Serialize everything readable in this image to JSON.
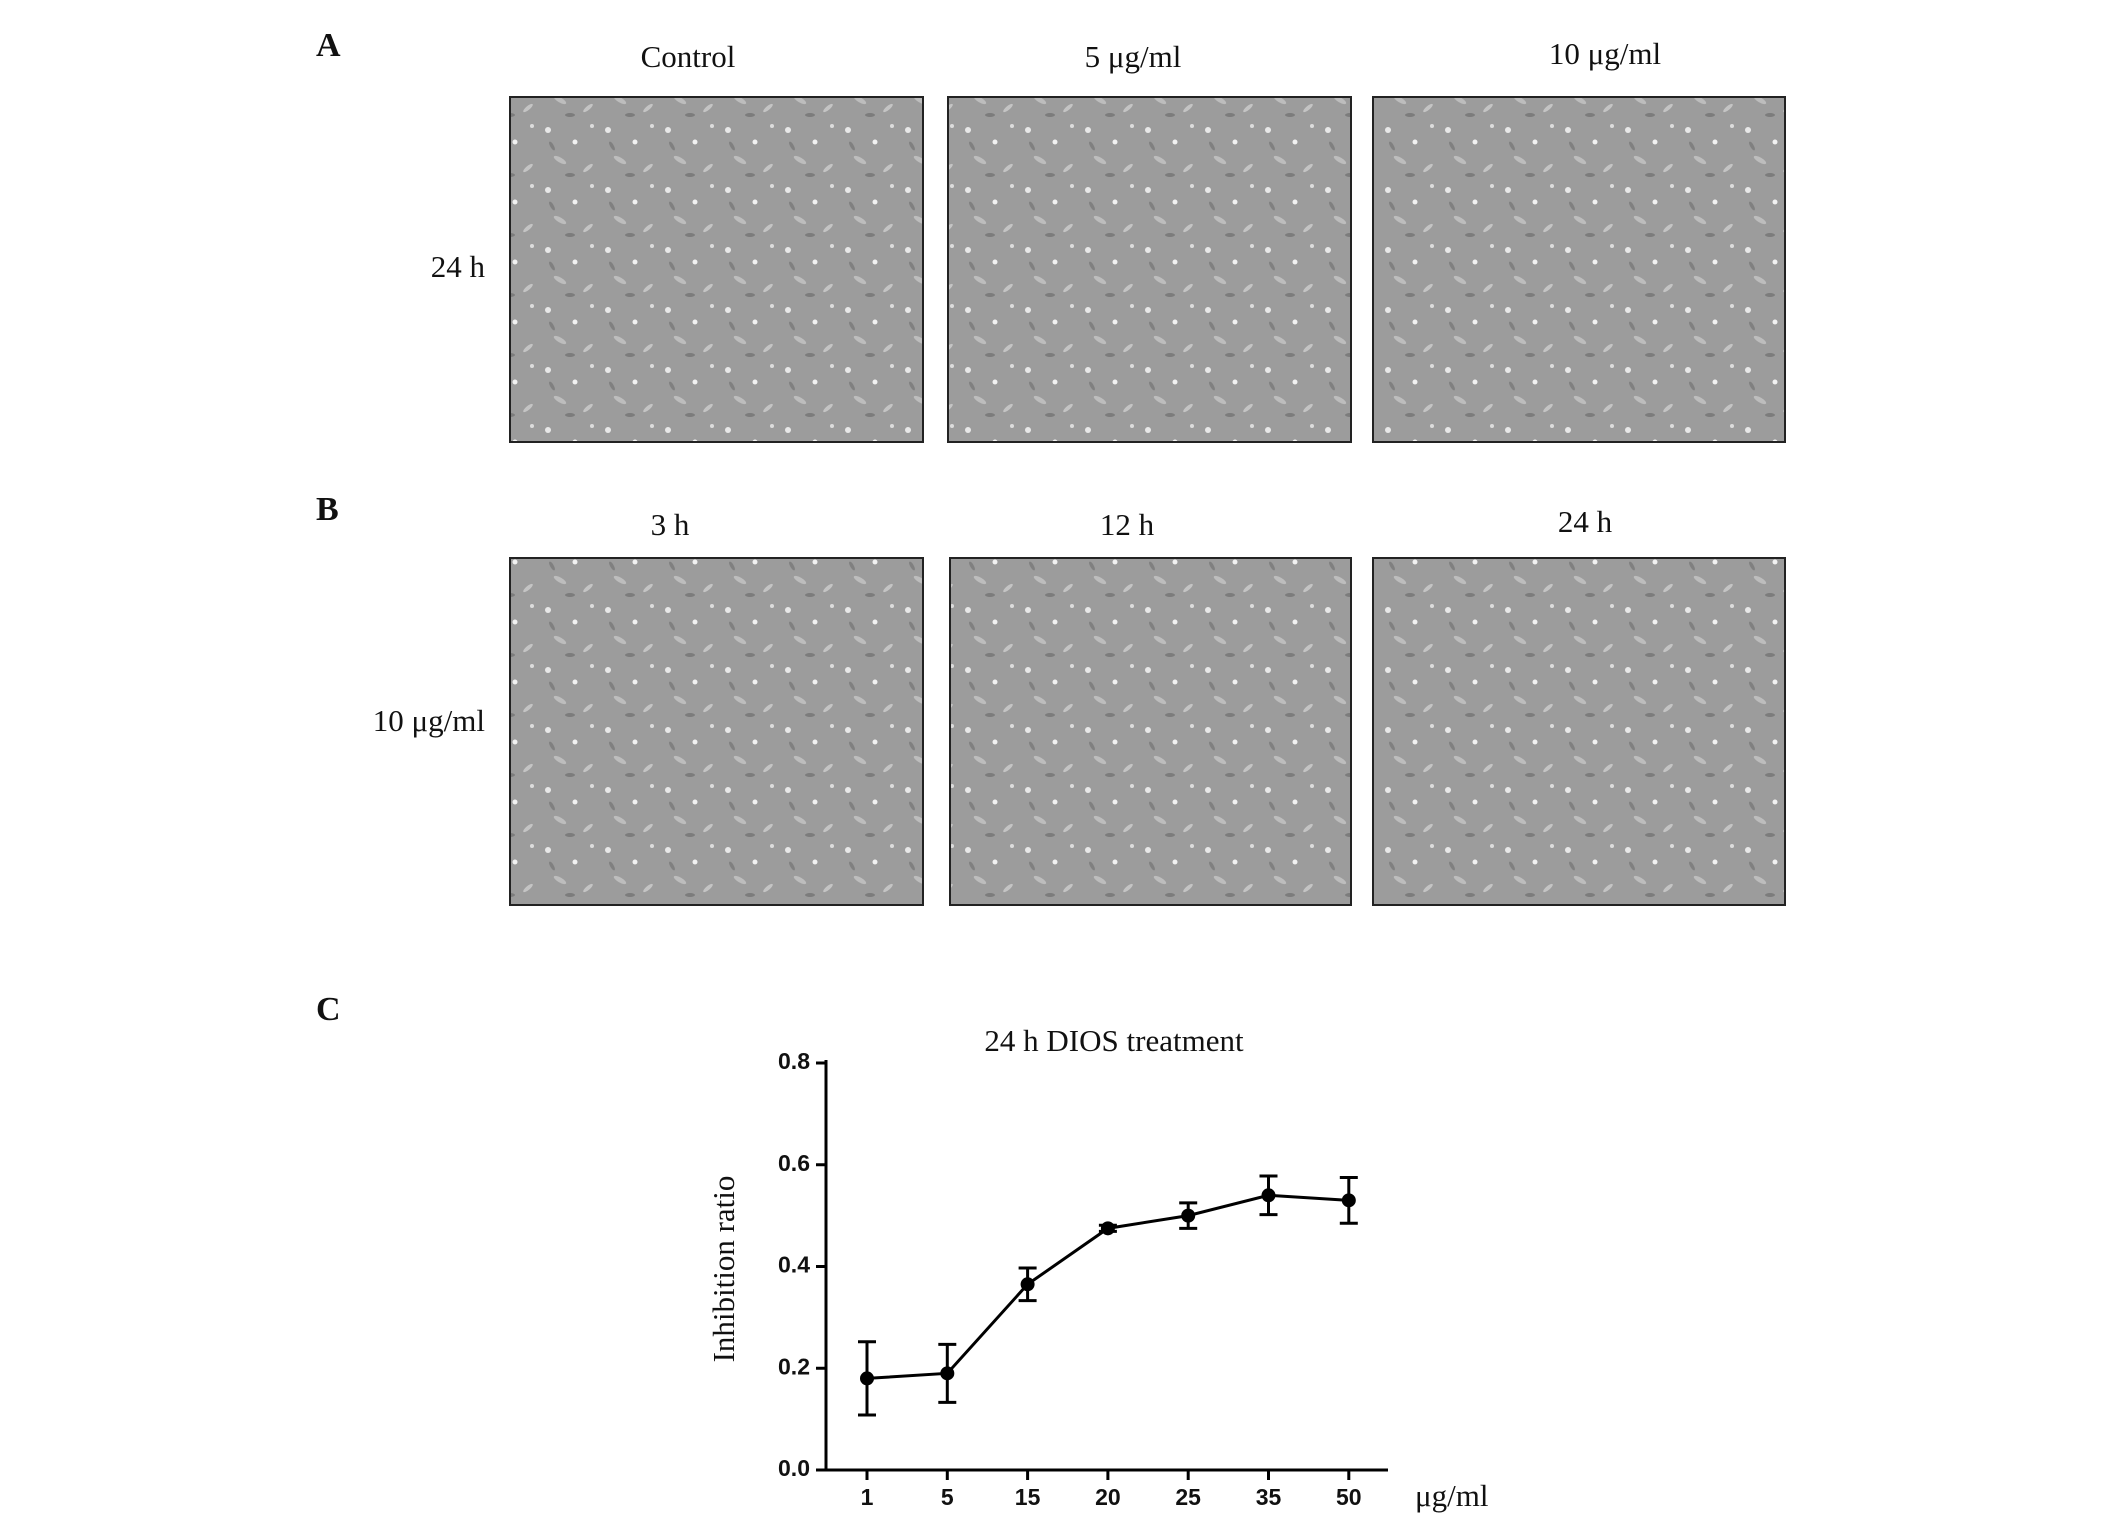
{
  "panels": [
    {
      "label": "A",
      "columns": [
        "Control",
        "5 μg/ml",
        "10 μg/ml"
      ],
      "row_label": "24 h"
    },
    {
      "label": "B",
      "columns": [
        "3 h",
        "12 h",
        "24 h"
      ],
      "row_label": "10 μg/ml"
    }
  ],
  "chart_data": {
    "type": "line",
    "panel_label": "C",
    "title": "24 h DIOS treatment",
    "y_label": "Inhibition ratio",
    "x_unit": "μg/ml",
    "categories": [
      "1",
      "5",
      "15",
      "20",
      "25",
      "35",
      "50"
    ],
    "values": [
      0.18,
      0.19,
      0.365,
      0.475,
      0.5,
      0.54,
      0.53
    ],
    "errors": [
      0.072,
      0.057,
      0.032,
      0.006,
      0.025,
      0.038,
      0.045
    ],
    "color": "#000000",
    "ylim": [
      0,
      0.8
    ],
    "yticks": [
      {
        "value": 0,
        "label": "0.0"
      },
      0.2,
      0.4,
      0.6,
      0.8
    ]
  }
}
